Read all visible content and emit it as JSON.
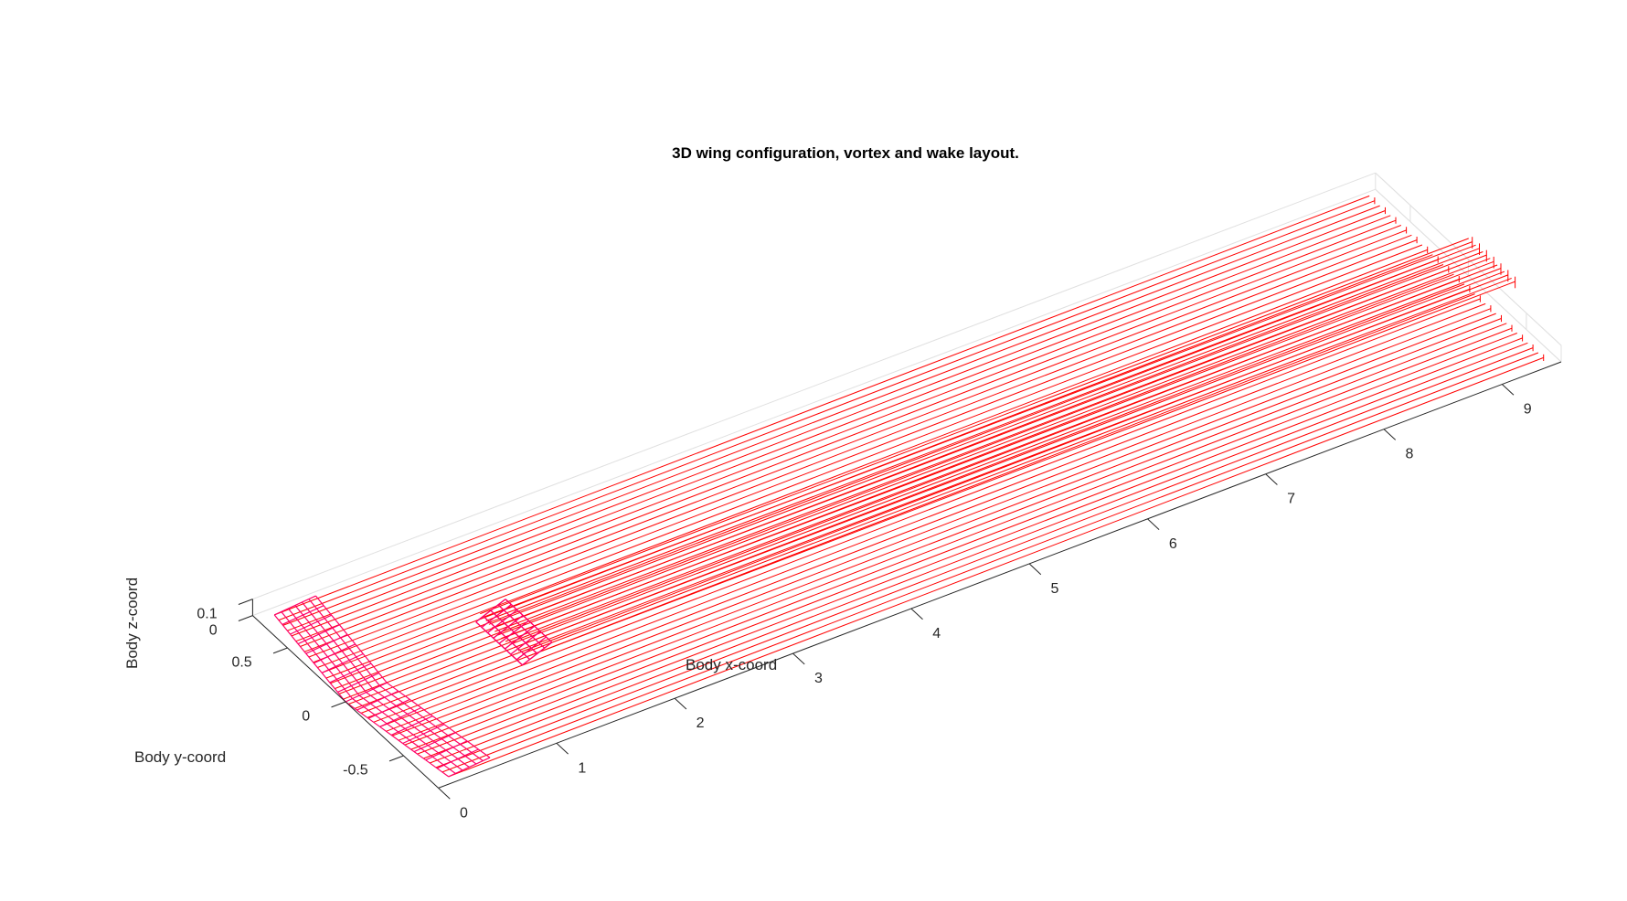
{
  "chart_data": {
    "type": "line",
    "view": "3d-isometric",
    "title": "3D wing configuration, vortex and wake layout.",
    "xlabel": "Body x-coord",
    "ylabel": "Body y-coord",
    "zlabel": "Body z-coord",
    "xlim": [
      0,
      9.5
    ],
    "ylim": [
      -0.8,
      0.8
    ],
    "zlim": [
      0,
      0.1
    ],
    "xticks": [
      "0",
      "1",
      "2",
      "3",
      "4",
      "5",
      "6",
      "7",
      "8",
      "9"
    ],
    "yticks": [
      "-0.5",
      "0",
      "0.5"
    ],
    "zticks": [
      "0",
      "0.1"
    ],
    "grid": true,
    "colors": {
      "wake_lines": "#ff0000",
      "wing_panels": "#ff0066",
      "axis": "#262626",
      "grid": "#e0e0e0"
    },
    "series": [
      {
        "role": "main wing wake",
        "color": "#ff0000",
        "x_start": 0.0,
        "x_end": 9.4,
        "y_range": [
          -0.75,
          0.75
        ]
      },
      {
        "role": "tail wake",
        "color": "#ff0000",
        "x_start": 1.3,
        "x_end": 9.7,
        "y_range": [
          -0.2,
          0.2
        ]
      }
    ]
  }
}
